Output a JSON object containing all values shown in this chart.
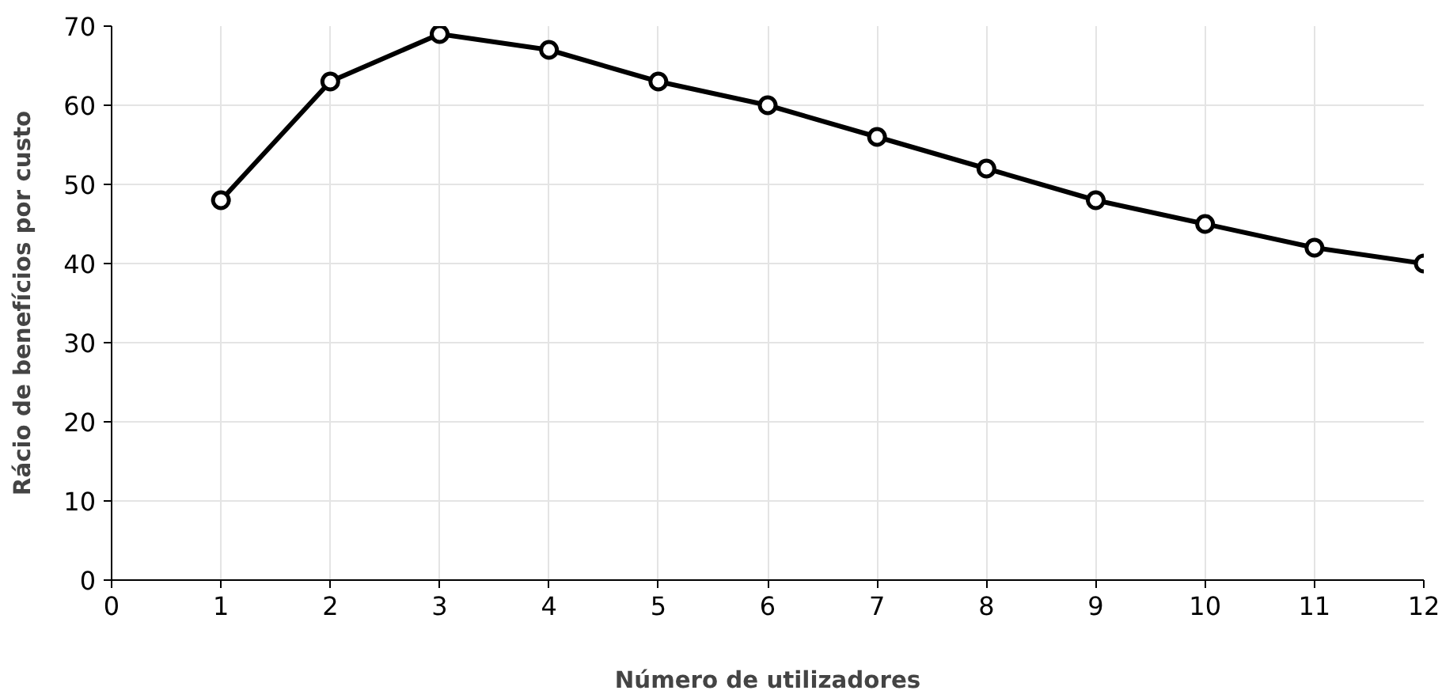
{
  "chart_data": {
    "type": "line",
    "xlabel": "Número de utilizadores",
    "ylabel": "Rácio de benefícios por custo",
    "x": [
      1,
      2,
      3,
      4,
      5,
      6,
      7,
      8,
      9,
      10,
      11,
      12
    ],
    "series": [
      {
        "color": "#000000",
        "values": [
          48,
          63,
          69,
          67,
          63,
          60,
          56,
          52,
          48,
          45,
          42,
          40
        ]
      }
    ],
    "xlim": [
      0,
      12
    ],
    "xticks": [
      0,
      1,
      2,
      3,
      4,
      5,
      6,
      7,
      8,
      9,
      10,
      11,
      12
    ],
    "ylim": [
      0,
      70
    ],
    "yticks": [
      0,
      10,
      20,
      30,
      40,
      50,
      60,
      70
    ],
    "grid": true,
    "marker": "circle",
    "line_style": "solid"
  }
}
